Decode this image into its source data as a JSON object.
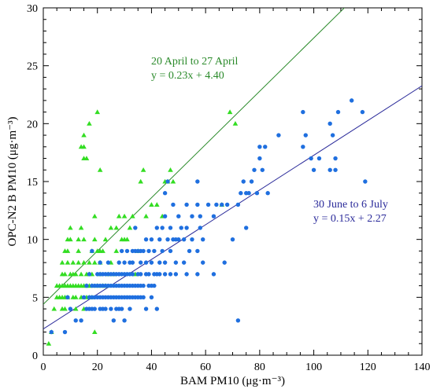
{
  "chart_data": {
    "type": "scatter",
    "xlabel": "BAM PM10 (μg·m⁻³)",
    "ylabel": "OPC-N2  B  PM10 (μg·m⁻³)",
    "xlim": [
      0,
      140
    ],
    "ylim": [
      0,
      30
    ],
    "x_ticks": [
      0,
      20,
      40,
      60,
      80,
      100,
      120,
      140
    ],
    "y_ticks": [
      0,
      5,
      10,
      15,
      20,
      25,
      30
    ],
    "grid": false,
    "series": [
      {
        "name": "20 April to 27 April",
        "color": "#33dd22",
        "marker": "triangle",
        "fit": {
          "slope": 0.23,
          "intercept": 4.4,
          "label": "y = 0.23x + 4.40",
          "color": "#2a8a2a"
        },
        "points": [
          [
            2,
            1
          ],
          [
            3,
            2
          ],
          [
            4,
            4
          ],
          [
            5,
            5
          ],
          [
            5,
            6
          ],
          [
            6,
            5
          ],
          [
            6,
            6
          ],
          [
            7,
            4
          ],
          [
            7,
            5
          ],
          [
            7,
            6
          ],
          [
            7,
            7
          ],
          [
            7,
            8
          ],
          [
            8,
            4
          ],
          [
            8,
            5
          ],
          [
            8,
            6
          ],
          [
            8,
            7
          ],
          [
            8,
            9
          ],
          [
            9,
            5
          ],
          [
            9,
            6
          ],
          [
            9,
            8
          ],
          [
            9,
            9
          ],
          [
            9,
            10
          ],
          [
            10,
            6
          ],
          [
            10,
            7
          ],
          [
            10,
            10
          ],
          [
            10,
            11
          ],
          [
            11,
            5
          ],
          [
            11,
            6
          ],
          [
            11,
            7
          ],
          [
            11,
            8
          ],
          [
            12,
            4
          ],
          [
            12,
            5
          ],
          [
            12,
            6
          ],
          [
            12,
            7
          ],
          [
            13,
            6
          ],
          [
            13,
            8
          ],
          [
            13,
            9
          ],
          [
            13,
            10
          ],
          [
            14,
            5
          ],
          [
            14,
            6
          ],
          [
            14,
            7
          ],
          [
            14,
            11
          ],
          [
            14,
            18
          ],
          [
            15,
            4
          ],
          [
            15,
            6
          ],
          [
            15,
            8
          ],
          [
            15,
            10
          ],
          [
            15,
            17
          ],
          [
            15,
            18
          ],
          [
            15,
            19
          ],
          [
            16,
            5
          ],
          [
            16,
            6
          ],
          [
            16,
            7
          ],
          [
            16,
            17
          ],
          [
            17,
            5
          ],
          [
            17,
            6
          ],
          [
            17,
            7
          ],
          [
            17,
            8
          ],
          [
            17,
            20
          ],
          [
            18,
            5
          ],
          [
            18,
            6
          ],
          [
            18,
            7
          ],
          [
            18,
            9
          ],
          [
            19,
            8
          ],
          [
            19,
            10
          ],
          [
            19,
            12
          ],
          [
            19,
            2
          ],
          [
            20,
            6
          ],
          [
            20,
            9
          ],
          [
            20,
            21
          ],
          [
            21,
            7
          ],
          [
            21,
            8
          ],
          [
            21,
            9
          ],
          [
            21,
            16
          ],
          [
            22,
            6
          ],
          [
            22,
            9
          ],
          [
            23,
            6
          ],
          [
            23,
            10
          ],
          [
            24,
            7
          ],
          [
            25,
            8
          ],
          [
            25,
            11
          ],
          [
            26,
            7
          ],
          [
            27,
            9
          ],
          [
            27,
            11
          ],
          [
            28,
            12
          ],
          [
            29,
            10
          ],
          [
            30,
            10
          ],
          [
            30,
            12
          ],
          [
            31,
            10
          ],
          [
            32,
            11
          ],
          [
            33,
            12
          ],
          [
            34,
            7
          ],
          [
            35,
            9
          ],
          [
            36,
            15
          ],
          [
            37,
            16
          ],
          [
            38,
            12
          ],
          [
            40,
            13
          ],
          [
            42,
            13
          ],
          [
            44,
            12
          ],
          [
            45,
            15
          ],
          [
            46,
            15
          ],
          [
            47,
            16
          ],
          [
            48,
            15
          ],
          [
            66,
            13
          ],
          [
            69,
            21
          ],
          [
            71,
            20
          ]
        ]
      },
      {
        "name": "30 June to 6 July",
        "color": "#1f6fdf",
        "marker": "circle",
        "fit": {
          "slope": 0.15,
          "intercept": 2.27,
          "label": "y = 0.15x + 2.27",
          "color": "#2a2a9a"
        },
        "points": [
          [
            3,
            2
          ],
          [
            8,
            2
          ],
          [
            9,
            5
          ],
          [
            10,
            4
          ],
          [
            12,
            3
          ],
          [
            14,
            3
          ],
          [
            15,
            5
          ],
          [
            16,
            4
          ],
          [
            16,
            6
          ],
          [
            17,
            4
          ],
          [
            17,
            5
          ],
          [
            17,
            7
          ],
          [
            18,
            4
          ],
          [
            18,
            5
          ],
          [
            18,
            6
          ],
          [
            18,
            9
          ],
          [
            19,
            4
          ],
          [
            19,
            5
          ],
          [
            19,
            6
          ],
          [
            20,
            5
          ],
          [
            20,
            6
          ],
          [
            20,
            7
          ],
          [
            21,
            4
          ],
          [
            21,
            5
          ],
          [
            21,
            6
          ],
          [
            21,
            7
          ],
          [
            21,
            8
          ],
          [
            22,
            4
          ],
          [
            22,
            5
          ],
          [
            22,
            6
          ],
          [
            22,
            7
          ],
          [
            23,
            4
          ],
          [
            23,
            5
          ],
          [
            23,
            6
          ],
          [
            23,
            7
          ],
          [
            24,
            5
          ],
          [
            24,
            6
          ],
          [
            24,
            7
          ],
          [
            24,
            8
          ],
          [
            25,
            4
          ],
          [
            25,
            5
          ],
          [
            25,
            6
          ],
          [
            25,
            7
          ],
          [
            26,
            3
          ],
          [
            26,
            5
          ],
          [
            26,
            6
          ],
          [
            26,
            7
          ],
          [
            27,
            4
          ],
          [
            27,
            5
          ],
          [
            27,
            6
          ],
          [
            27,
            7
          ],
          [
            28,
            4
          ],
          [
            28,
            5
          ],
          [
            28,
            6
          ],
          [
            28,
            7
          ],
          [
            28,
            8
          ],
          [
            29,
            4
          ],
          [
            29,
            5
          ],
          [
            29,
            6
          ],
          [
            29,
            7
          ],
          [
            29,
            9
          ],
          [
            30,
            3
          ],
          [
            30,
            5
          ],
          [
            30,
            6
          ],
          [
            30,
            7
          ],
          [
            30,
            8
          ],
          [
            31,
            5
          ],
          [
            31,
            6
          ],
          [
            31,
            7
          ],
          [
            31,
            9
          ],
          [
            32,
            4
          ],
          [
            32,
            5
          ],
          [
            32,
            6
          ],
          [
            32,
            7
          ],
          [
            32,
            8
          ],
          [
            33,
            5
          ],
          [
            33,
            6
          ],
          [
            33,
            7
          ],
          [
            33,
            8
          ],
          [
            33,
            9
          ],
          [
            34,
            5
          ],
          [
            34,
            6
          ],
          [
            34,
            9
          ],
          [
            34,
            11
          ],
          [
            35,
            5
          ],
          [
            35,
            6
          ],
          [
            35,
            7
          ],
          [
            35,
            9
          ],
          [
            36,
            5
          ],
          [
            36,
            6
          ],
          [
            36,
            7
          ],
          [
            36,
            8
          ],
          [
            36,
            9
          ],
          [
            37,
            5
          ],
          [
            37,
            6
          ],
          [
            37,
            9
          ],
          [
            38,
            4
          ],
          [
            38,
            7
          ],
          [
            38,
            8
          ],
          [
            38,
            10
          ],
          [
            39,
            6
          ],
          [
            39,
            7
          ],
          [
            39,
            9
          ],
          [
            40,
            5
          ],
          [
            40,
            6
          ],
          [
            40,
            8
          ],
          [
            40,
            10
          ],
          [
            41,
            6
          ],
          [
            41,
            7
          ],
          [
            41,
            9
          ],
          [
            42,
            4
          ],
          [
            42,
            7
          ],
          [
            42,
            11
          ],
          [
            43,
            7
          ],
          [
            43,
            8
          ],
          [
            43,
            10
          ],
          [
            44,
            9
          ],
          [
            44,
            11
          ],
          [
            45,
            7
          ],
          [
            45,
            8
          ],
          [
            45,
            12
          ],
          [
            45,
            14
          ],
          [
            46,
            10
          ],
          [
            46,
            15
          ],
          [
            47,
            7
          ],
          [
            47,
            9
          ],
          [
            47,
            11
          ],
          [
            48,
            10
          ],
          [
            48,
            13
          ],
          [
            49,
            7
          ],
          [
            49,
            8
          ],
          [
            49,
            10
          ],
          [
            50,
            10
          ],
          [
            50,
            12
          ],
          [
            51,
            11
          ],
          [
            52,
            8
          ],
          [
            52,
            10
          ],
          [
            53,
            7
          ],
          [
            53,
            11
          ],
          [
            53,
            13
          ],
          [
            54,
            9
          ],
          [
            55,
            10
          ],
          [
            55,
            12
          ],
          [
            57,
            7
          ],
          [
            57,
            9
          ],
          [
            57,
            13
          ],
          [
            57,
            15
          ],
          [
            58,
            11
          ],
          [
            58,
            12
          ],
          [
            59,
            8
          ],
          [
            59,
            10
          ],
          [
            61,
            13
          ],
          [
            63,
            7
          ],
          [
            63,
            12
          ],
          [
            64,
            13
          ],
          [
            66,
            13
          ],
          [
            67,
            8
          ],
          [
            68,
            13
          ],
          [
            70,
            10
          ],
          [
            72,
            3
          ],
          [
            72,
            13
          ],
          [
            73,
            14
          ],
          [
            74,
            15
          ],
          [
            75,
            11
          ],
          [
            75,
            14
          ],
          [
            76,
            14
          ],
          [
            77,
            15
          ],
          [
            78,
            16
          ],
          [
            79,
            14
          ],
          [
            80,
            18
          ],
          [
            80,
            17
          ],
          [
            81,
            16
          ],
          [
            82,
            18
          ],
          [
            83,
            14
          ],
          [
            87,
            19
          ],
          [
            96,
            18
          ],
          [
            96,
            21
          ],
          [
            97,
            19
          ],
          [
            99,
            17
          ],
          [
            100,
            16
          ],
          [
            102,
            17
          ],
          [
            106,
            16
          ],
          [
            106,
            20
          ],
          [
            107,
            19
          ],
          [
            108,
            17
          ],
          [
            108,
            16
          ],
          [
            109,
            21
          ],
          [
            114,
            22
          ],
          [
            118,
            21
          ],
          [
            119,
            15
          ]
        ]
      }
    ],
    "annotations": [
      {
        "text": "20 April to 27 April",
        "series": 0
      },
      {
        "text": "y = 0.23x + 4.40",
        "series": 0
      },
      {
        "text": "30 June to 6 July",
        "series": 1
      },
      {
        "text": "y = 0.15x + 2.27",
        "series": 1
      }
    ]
  }
}
